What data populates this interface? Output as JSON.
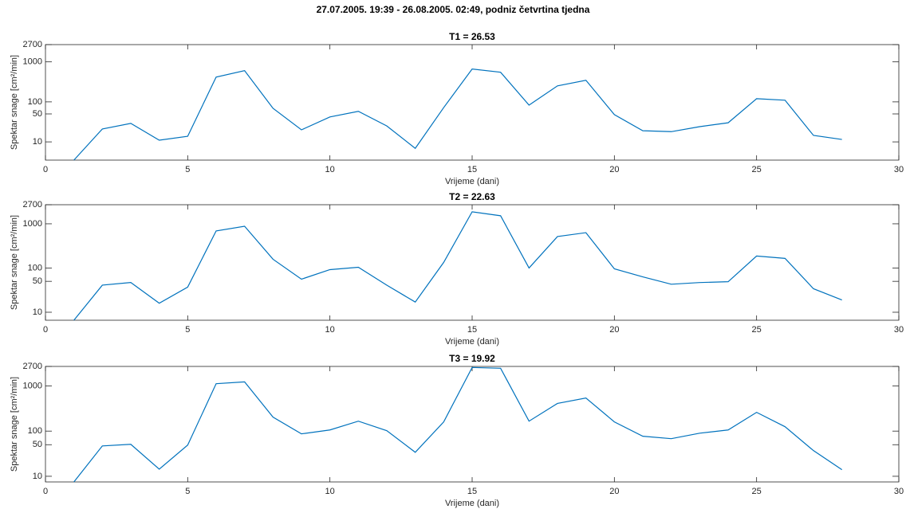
{
  "title": "27.07.2005. 19:39 - 26.08.2005. 02:49, podniz četvrtina tjedna",
  "chart_data": [
    {
      "type": "line",
      "title": "T1 = 26.53",
      "xlabel": "Vrijeme (dani)",
      "ylabel": "Spektar snage [cm²/min]",
      "x": [
        1,
        2,
        3,
        4,
        5,
        6,
        7,
        8,
        9,
        10,
        11,
        12,
        13,
        14,
        15,
        16,
        17,
        18,
        19,
        20,
        21,
        22,
        23,
        24,
        25,
        26,
        27,
        28
      ],
      "values": [
        3.5,
        21,
        29,
        11,
        13.8,
        417,
        603,
        69,
        20,
        42,
        58,
        25,
        6.9,
        72,
        661,
        550,
        83,
        251,
        347,
        48,
        19,
        18,
        24,
        30,
        120,
        110,
        14.5,
        11.5
      ],
      "color": "#0072bd",
      "yscale": "log",
      "xlim": [
        0,
        30
      ],
      "xticks": [
        0,
        5,
        10,
        15,
        20,
        25,
        30
      ],
      "ylim": [
        3.5,
        2700
      ],
      "yticks": [
        10,
        50,
        100,
        1000,
        2700
      ]
    },
    {
      "type": "line",
      "title": "T2 = 22.63",
      "xlabel": "Vrijeme (dani)",
      "ylabel": "Spektar snage [cm²/min]",
      "x": [
        1,
        2,
        3,
        4,
        5,
        6,
        7,
        8,
        9,
        10,
        11,
        12,
        13,
        14,
        15,
        16,
        17,
        18,
        19,
        20,
        21,
        22,
        23,
        24,
        25,
        26,
        27,
        28
      ],
      "values": [
        6.6,
        41,
        47,
        16,
        37,
        690,
        880,
        158,
        56,
        92,
        104,
        41,
        17,
        134,
        1870,
        1520,
        100,
        515,
        630,
        96,
        63,
        43,
        47,
        49,
        187,
        165,
        34,
        19
      ],
      "color": "#0072bd",
      "yscale": "log",
      "xlim": [
        0,
        30
      ],
      "xticks": [
        0,
        5,
        10,
        15,
        20,
        25,
        30
      ],
      "ylim": [
        6.6,
        2700
      ],
      "yticks": [
        10,
        50,
        100,
        1000,
        2700
      ]
    },
    {
      "type": "line",
      "title": "T3 = 19.92",
      "xlabel": "Vrijeme (dani)",
      "ylabel": "Spektar snage [cm²/min]",
      "x": [
        1,
        2,
        3,
        4,
        5,
        6,
        7,
        8,
        9,
        10,
        11,
        12,
        13,
        14,
        15,
        16,
        17,
        18,
        19,
        20,
        21,
        22,
        23,
        24,
        25,
        26,
        27,
        28
      ],
      "values": [
        7.5,
        47,
        51,
        14.4,
        49,
        1120,
        1230,
        204,
        87,
        106,
        166,
        102,
        34,
        160,
        2560,
        2460,
        166,
        410,
        540,
        160,
        77,
        68,
        90,
        106,
        260,
        125,
        37,
        14
      ],
      "color": "#0072bd",
      "yscale": "log",
      "xlim": [
        0,
        30
      ],
      "xticks": [
        0,
        5,
        10,
        15,
        20,
        25,
        30
      ],
      "ylim": [
        7.5,
        2700
      ],
      "yticks": [
        10,
        50,
        100,
        1000,
        2700
      ]
    }
  ]
}
